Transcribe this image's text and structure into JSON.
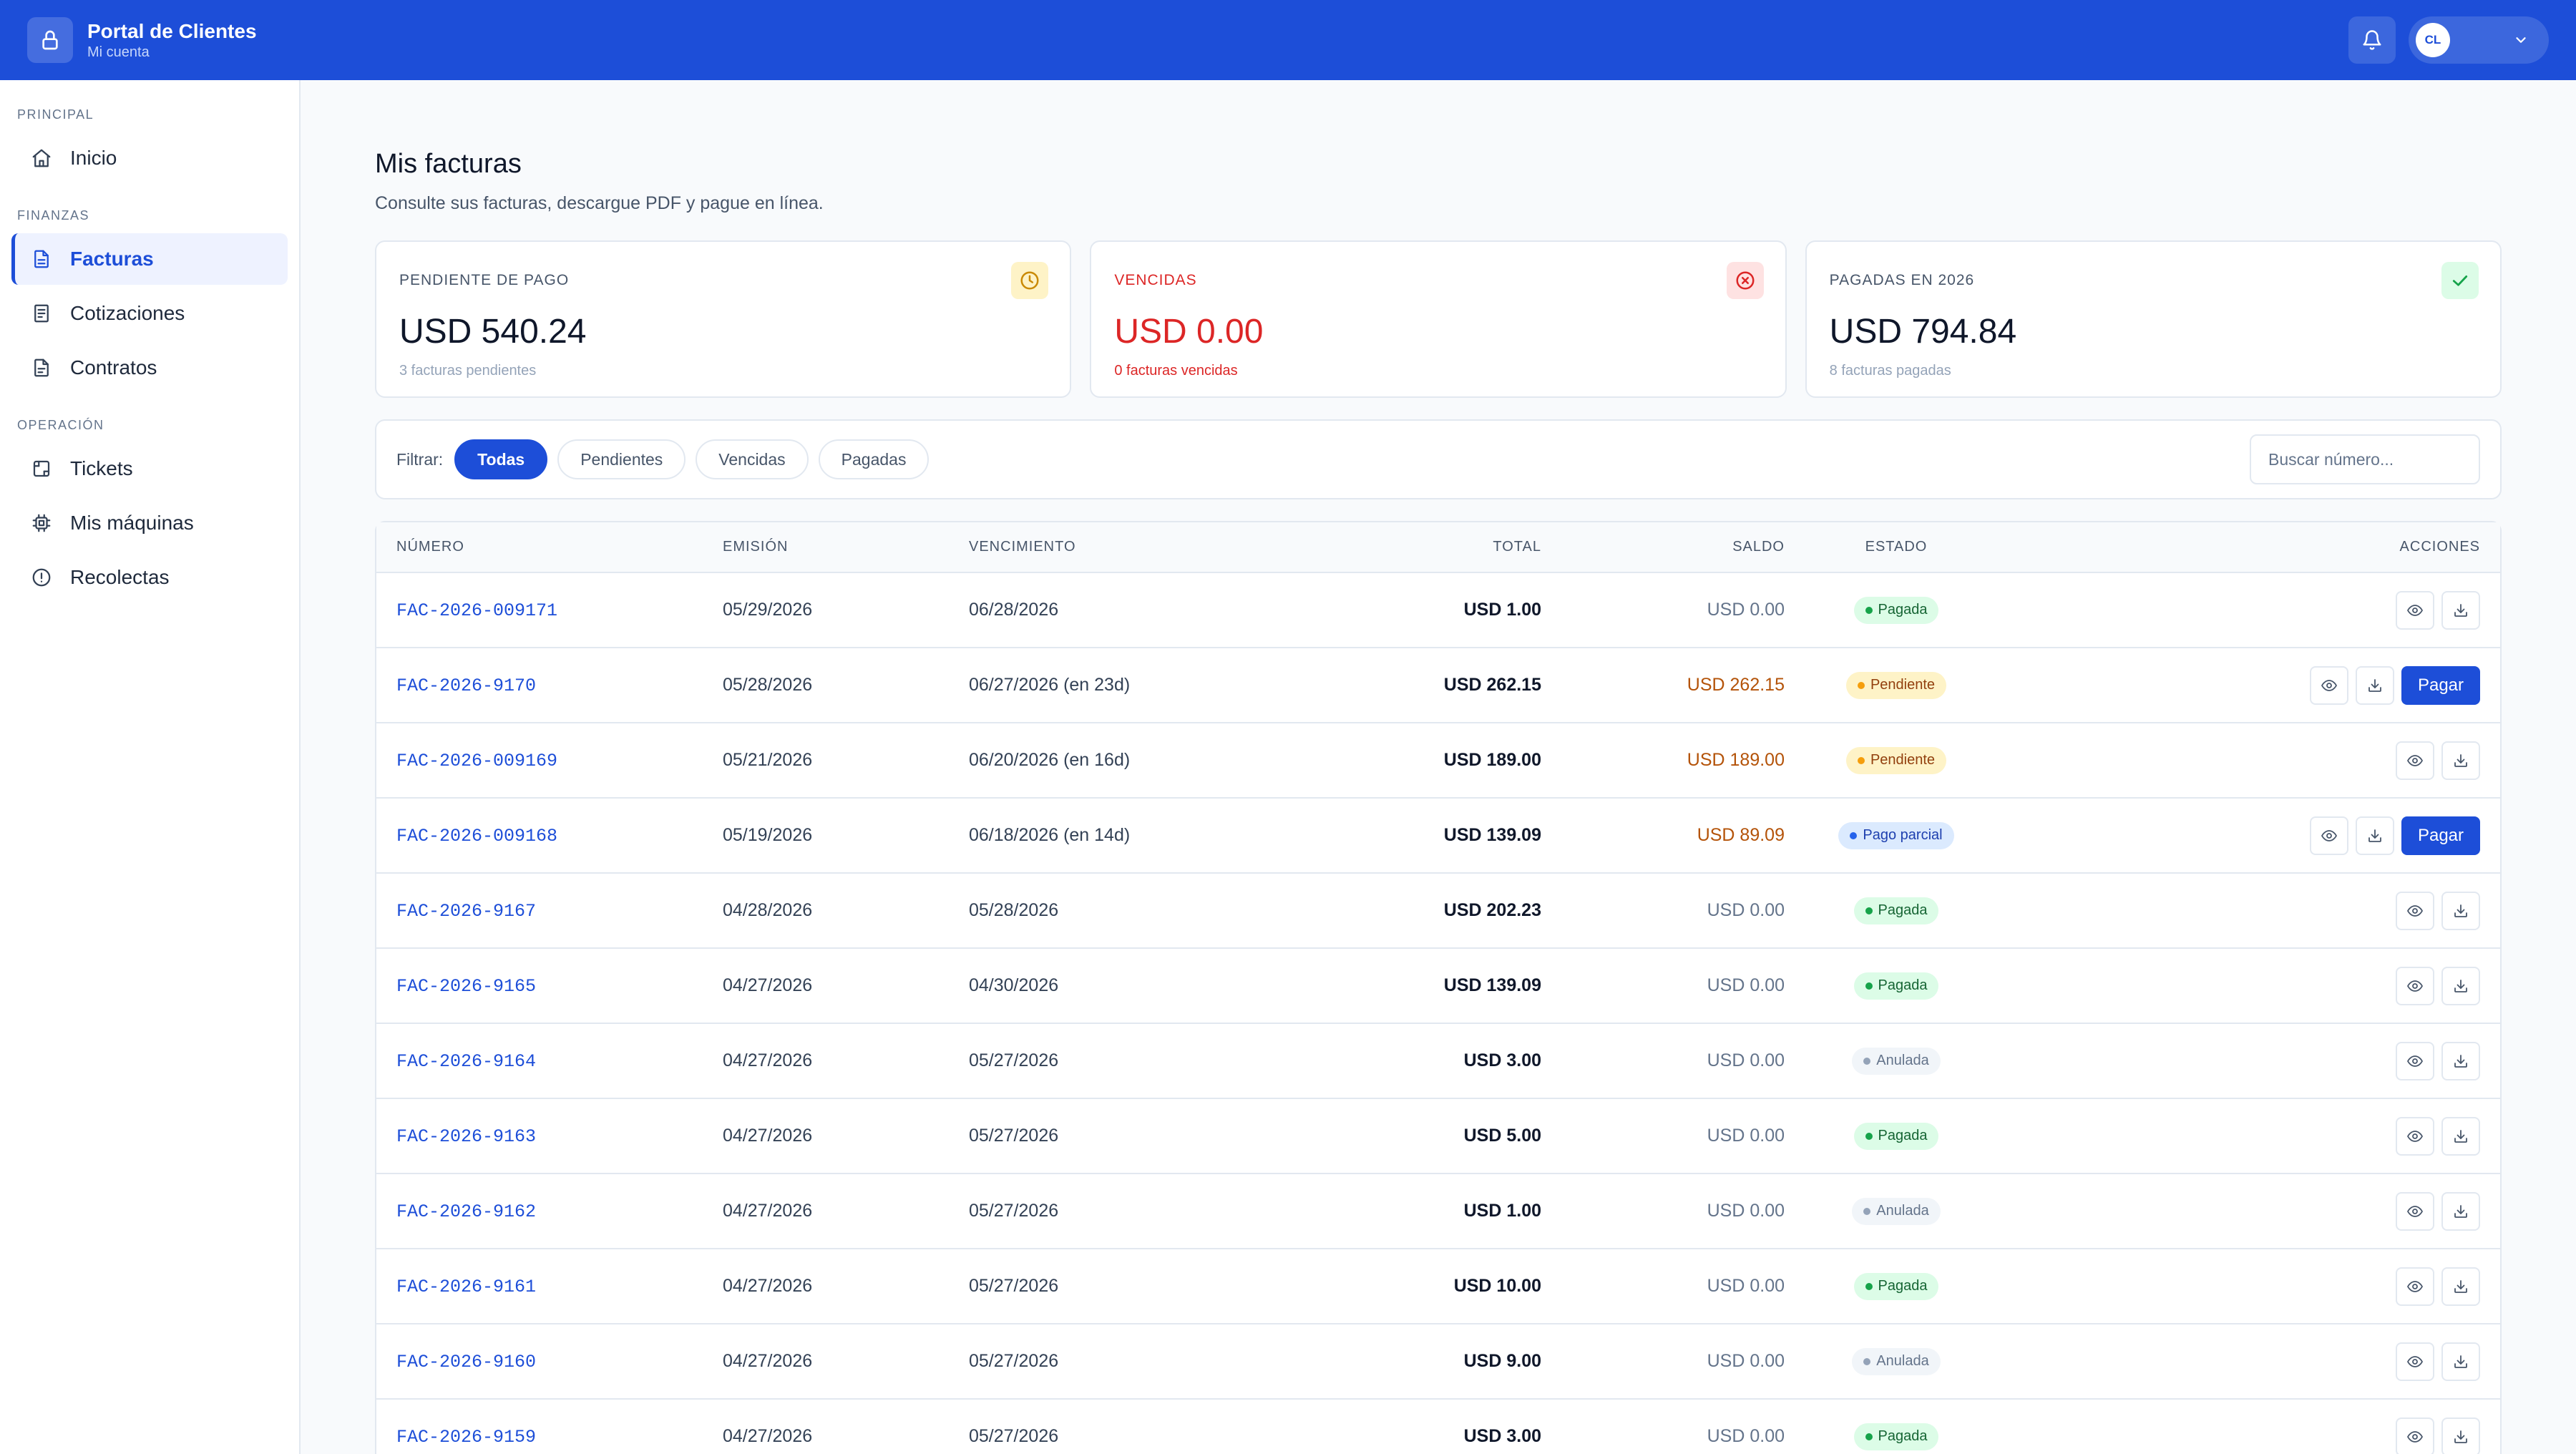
{
  "header": {
    "title": "Portal de Clientes",
    "subtitle": "Mi cuenta",
    "logo_icon": "lock-icon",
    "user_initials": "CL",
    "brand_color": "#1d4ed8"
  },
  "sidebar": {
    "sections": [
      {
        "label": "PRINCIPAL",
        "items": [
          {
            "label": "Inicio",
            "icon": "home-icon"
          }
        ]
      },
      {
        "label": "FINANZAS",
        "items": [
          {
            "label": "Facturas",
            "icon": "document-icon",
            "active": true
          },
          {
            "label": "Cotizaciones",
            "icon": "receipt-icon"
          },
          {
            "label": "Contratos",
            "icon": "file-icon"
          }
        ]
      },
      {
        "label": "OPERACIÓN",
        "items": [
          {
            "label": "Tickets",
            "icon": "ticket-icon"
          },
          {
            "label": "Mis máquinas",
            "icon": "chip-icon"
          },
          {
            "label": "Recolectas",
            "icon": "alert-circle-icon"
          }
        ]
      }
    ]
  },
  "main": {
    "title": "Mis facturas",
    "subtitle": "Consulte sus facturas, descargue PDF y pague en línea."
  },
  "cards": [
    {
      "label": "PENDIENTE DE PAGO",
      "value": "USD 540.24",
      "foot": "3 facturas pendientes",
      "icon": "clock-icon",
      "color": "#ca8a04"
    },
    {
      "label": "VENCIDAS",
      "value": "USD 0.00",
      "foot": "0 facturas vencidas",
      "icon": "x-circle-icon",
      "color": "#dc2626"
    },
    {
      "label": "PAGADAS EN 2026",
      "value": "USD 794.84",
      "foot": "8 facturas pagadas",
      "icon": "check-icon",
      "color": "#16a34a"
    }
  ],
  "filters": {
    "label": "Filtrar:",
    "options": [
      "Todas",
      "Pendientes",
      "Vencidas",
      "Pagadas"
    ],
    "active": "Todas",
    "search_placeholder": "Buscar número..."
  },
  "table": {
    "columns": [
      "NÚMERO",
      "EMISIÓN",
      "VENCIMIENTO",
      "TOTAL",
      "SALDO",
      "ESTADO",
      "ACCIONES"
    ],
    "pay_label": "Pagar",
    "rows": [
      {
        "numero": "FAC-2026-009171",
        "emision": "05/29/2026",
        "vencimiento": "06/28/2026",
        "total": "USD 1.00",
        "saldo": "USD 0.00",
        "estado": "Pagada",
        "pay": false
      },
      {
        "numero": "FAC-2026-9170",
        "emision": "05/28/2026",
        "vencimiento": "06/27/2026 (en 23d)",
        "total": "USD 262.15",
        "saldo": "USD 262.15",
        "estado": "Pendiente",
        "pay": true
      },
      {
        "numero": "FAC-2026-009169",
        "emision": "05/21/2026",
        "vencimiento": "06/20/2026 (en 16d)",
        "total": "USD 189.00",
        "saldo": "USD 189.00",
        "estado": "Pendiente",
        "pay": false
      },
      {
        "numero": "FAC-2026-009168",
        "emision": "05/19/2026",
        "vencimiento": "06/18/2026 (en 14d)",
        "total": "USD 139.09",
        "saldo": "USD 89.09",
        "estado": "Pago parcial",
        "pay": true
      },
      {
        "numero": "FAC-2026-9167",
        "emision": "04/28/2026",
        "vencimiento": "05/28/2026",
        "total": "USD 202.23",
        "saldo": "USD 0.00",
        "estado": "Pagada",
        "pay": false
      },
      {
        "numero": "FAC-2026-9165",
        "emision": "04/27/2026",
        "vencimiento": "04/30/2026",
        "total": "USD 139.09",
        "saldo": "USD 0.00",
        "estado": "Pagada",
        "pay": false
      },
      {
        "numero": "FAC-2026-9164",
        "emision": "04/27/2026",
        "vencimiento": "05/27/2026",
        "total": "USD 3.00",
        "saldo": "USD 0.00",
        "estado": "Anulada",
        "pay": false
      },
      {
        "numero": "FAC-2026-9163",
        "emision": "04/27/2026",
        "vencimiento": "05/27/2026",
        "total": "USD 5.00",
        "saldo": "USD 0.00",
        "estado": "Pagada",
        "pay": false
      },
      {
        "numero": "FAC-2026-9162",
        "emision": "04/27/2026",
        "vencimiento": "05/27/2026",
        "total": "USD 1.00",
        "saldo": "USD 0.00",
        "estado": "Anulada",
        "pay": false
      },
      {
        "numero": "FAC-2026-9161",
        "emision": "04/27/2026",
        "vencimiento": "05/27/2026",
        "total": "USD 10.00",
        "saldo": "USD 0.00",
        "estado": "Pagada",
        "pay": false
      },
      {
        "numero": "FAC-2026-9160",
        "emision": "04/27/2026",
        "vencimiento": "05/27/2026",
        "total": "USD 9.00",
        "saldo": "USD 0.00",
        "estado": "Anulada",
        "pay": false
      },
      {
        "numero": "FAC-2026-9159",
        "emision": "04/27/2026",
        "vencimiento": "05/27/2026",
        "total": "USD 3.00",
        "saldo": "USD 0.00",
        "estado": "Pagada",
        "pay": false
      }
    ]
  }
}
